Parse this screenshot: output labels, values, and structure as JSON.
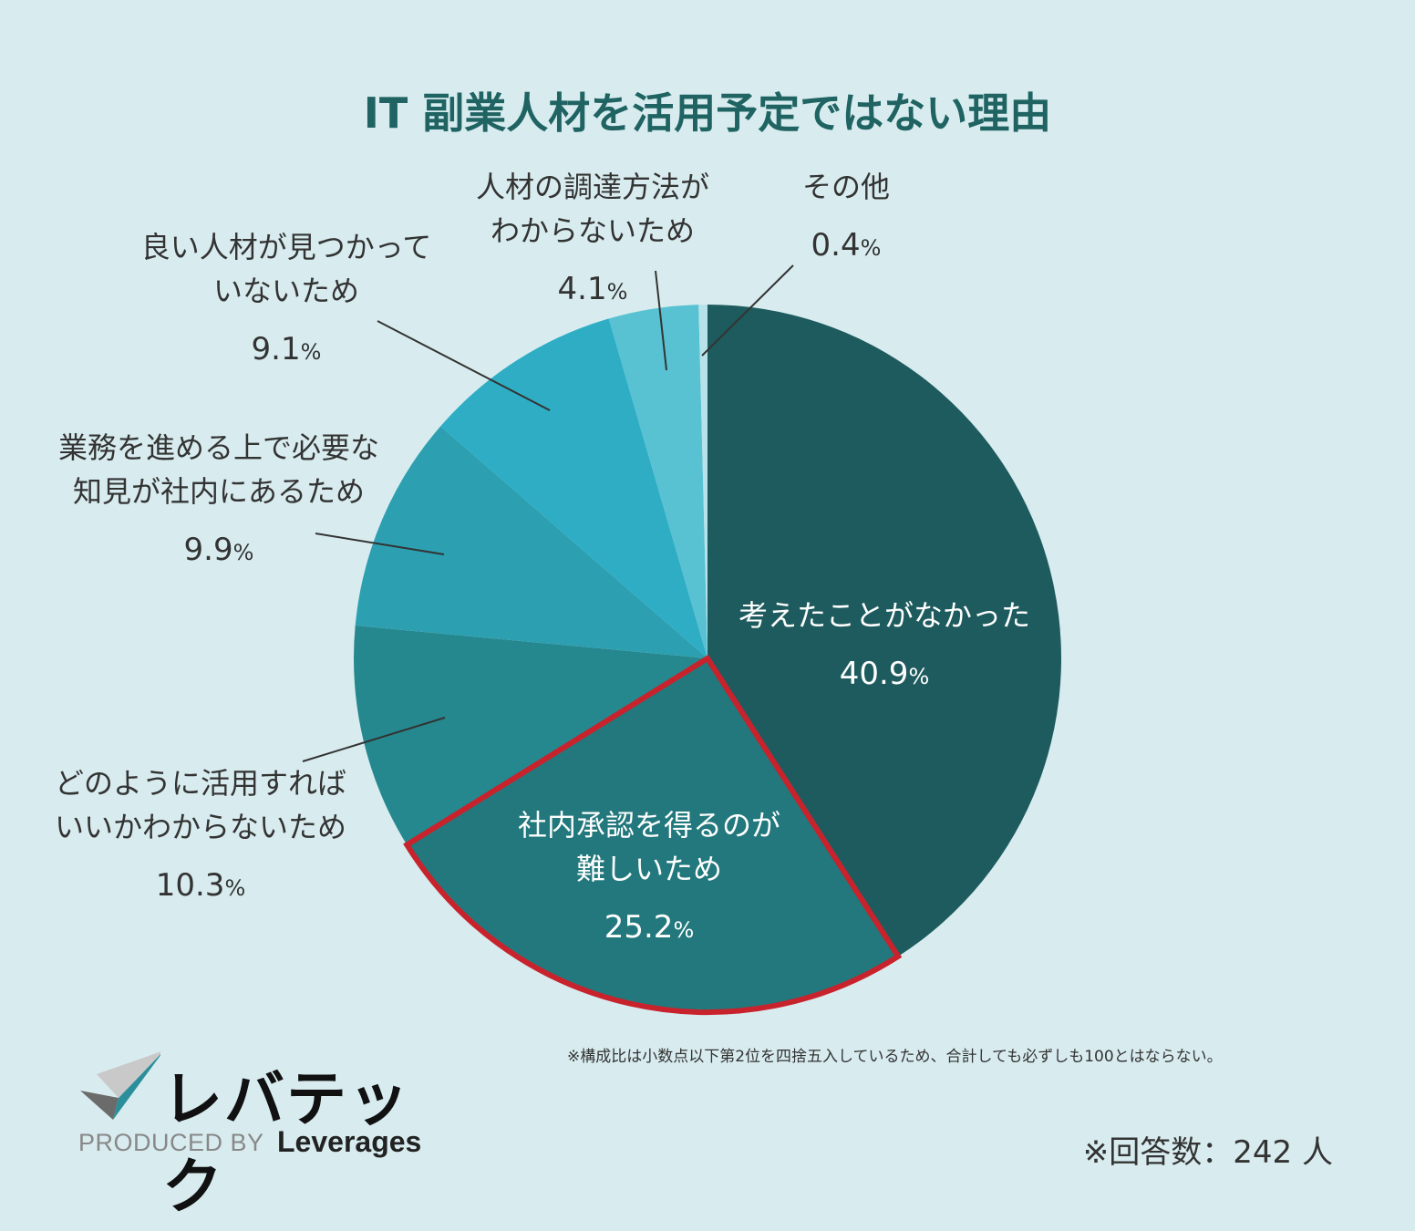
{
  "colors": {
    "background": "#d8ecef",
    "title": "#1f6362",
    "highlight_border": "#c8232c",
    "slice_colors": [
      "#1e5b5e",
      "#22787c",
      "#26888f",
      "#2c9fb1",
      "#2eadc4",
      "#58c2d2",
      "#b8e2ea"
    ]
  },
  "chart_data": {
    "type": "pie",
    "title": "IT 副業人材を活用予定ではない理由",
    "unit": "%",
    "slices": [
      {
        "label_lines": [
          "考えたことがなかった"
        ],
        "value": 40.9,
        "value_text": "40.9",
        "highlight": false
      },
      {
        "label_lines": [
          "社内承認を得るのが",
          "難しいため"
        ],
        "value": 25.2,
        "value_text": "25.2",
        "highlight": true
      },
      {
        "label_lines": [
          "どのように活用すれば",
          "いいかわからないため"
        ],
        "value": 10.3,
        "value_text": "10.3",
        "highlight": false
      },
      {
        "label_lines": [
          "業務を進める上で必要な",
          "知見が社内にあるため"
        ],
        "value": 9.9,
        "value_text": "9.9",
        "highlight": false
      },
      {
        "label_lines": [
          "良い人材が見つかって",
          "いないため"
        ],
        "value": 9.1,
        "value_text": "9.1",
        "highlight": false
      },
      {
        "label_lines": [
          "人材の調達方法が",
          "わからないため"
        ],
        "value": 4.1,
        "value_text": "4.1",
        "highlight": false
      },
      {
        "label_lines": [
          "その他"
        ],
        "value": 0.4,
        "value_text": "0.4",
        "highlight": false
      }
    ]
  },
  "footnote": "※構成比は小数点以下第2位を四捨五入しているため、合計しても必ずしも100とはならない。",
  "respondents": "※回答数：242 人",
  "logo": {
    "wordmark": "レバテック",
    "produced_by": "PRODUCED BY",
    "brand": "Leverages",
    "icon": "checkmark-logo-icon"
  }
}
